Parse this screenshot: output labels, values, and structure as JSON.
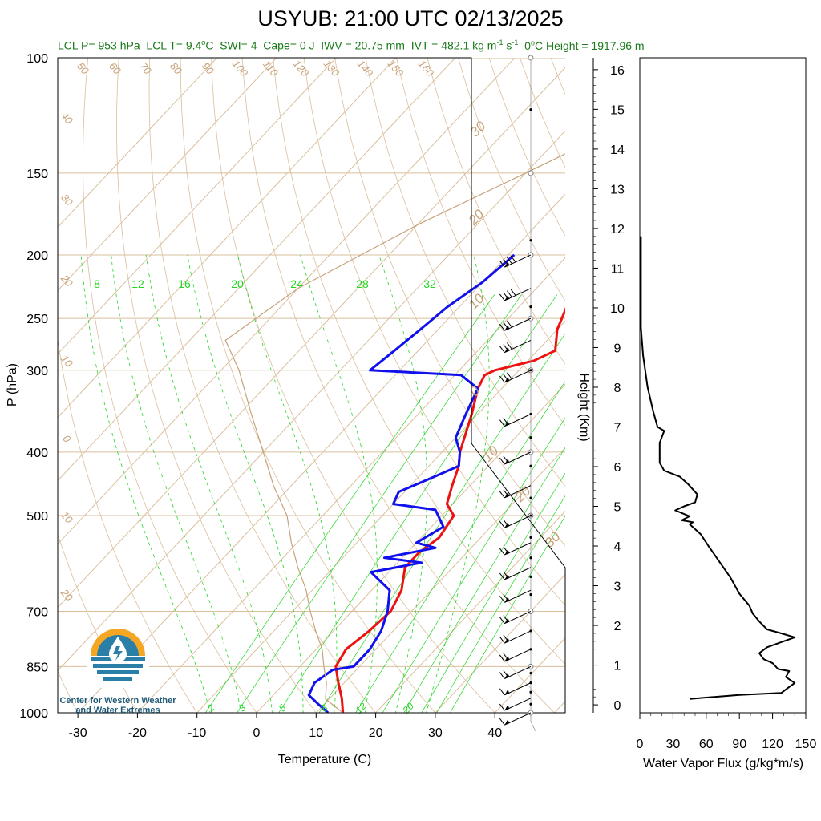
{
  "title": "USYUB: 21:00 UTC 02/13/2025",
  "subtitle": {
    "lcl_p": "LCL P= 953 hPa",
    "lcl_t": "LCL T= 9.4",
    "swi": "SWI= 4",
    "cape": "Cape= 0 J",
    "iwv": "IWV = 20.75 mm",
    "ivt": "IVT = 482.1 kg m",
    "zero_height": "0",
    "zero_height_tail": "C Height = 1917.96 m"
  },
  "logo": {
    "line1": "Center for Western Weather",
    "line2": "and Water Extremes"
  },
  "chart_data": [
    {
      "type": "line",
      "subtype": "skew-t",
      "xlabel": "Temperature (C)",
      "ylabel": "P (hPa)",
      "x_ticks": [
        -30,
        -20,
        -10,
        0,
        10,
        20,
        30,
        40
      ],
      "y_ticks": [
        100,
        150,
        200,
        250,
        300,
        400,
        500,
        700,
        850,
        1000
      ],
      "y_scale": "log",
      "ylim": [
        1000,
        100
      ],
      "xlim": [
        -35,
        49
      ],
      "grid": true,
      "dry_adiabat_labels": [
        "50",
        "60",
        "70",
        "80",
        "90",
        "100",
        "110",
        "120",
        "130",
        "140",
        "150",
        "160",
        "40",
        "30",
        "20",
        "10",
        "0",
        "10",
        "20"
      ],
      "isotherm_labels": [
        "30",
        "20",
        "10",
        "0",
        "10",
        "20",
        "30"
      ],
      "mixing_ratio_labels_top": [
        "8",
        "12",
        "16",
        "20",
        "24",
        "28",
        "32"
      ],
      "mixing_ratio_labels_bottom": [
        "2",
        "3",
        "5",
        "8",
        "12",
        "20"
      ],
      "series": [
        {
          "key": "temperature",
          "color": "#ee1111",
          "points": [
            [
              14.5,
              1000
            ],
            [
              12,
              950
            ],
            [
              9,
              900
            ],
            [
              6,
              850
            ],
            [
              5,
              800
            ],
            [
              6,
              750
            ],
            [
              6.5,
              700
            ],
            [
              5,
              650
            ],
            [
              2,
              600
            ],
            [
              2,
              570
            ],
            [
              3,
              540
            ],
            [
              2,
              500
            ],
            [
              -1,
              480
            ],
            [
              -3,
              450
            ],
            [
              -5,
              420
            ],
            [
              -7,
              400
            ],
            [
              -11,
              350
            ],
            [
              -14,
              320
            ],
            [
              -15,
              305
            ],
            [
              -14,
              300
            ],
            [
              -9,
              290
            ],
            [
              -7,
              280
            ],
            [
              -10,
              260
            ],
            [
              -12,
              240
            ],
            [
              -14,
              220
            ],
            [
              -16,
              200
            ]
          ]
        },
        {
          "key": "dewpoint",
          "color": "#1111ee",
          "points": [
            [
              12,
              1000
            ],
            [
              9,
              970
            ],
            [
              6,
              940
            ],
            [
              5,
              900
            ],
            [
              6,
              860
            ],
            [
              9,
              850
            ],
            [
              9,
              800
            ],
            [
              8,
              750
            ],
            [
              6,
              700
            ],
            [
              3,
              650
            ],
            [
              -3,
              610
            ],
            [
              4,
              590
            ],
            [
              -3,
              580
            ],
            [
              4,
              560
            ],
            [
              0,
              550
            ],
            [
              2,
              520
            ],
            [
              -2,
              490
            ],
            [
              -10,
              480
            ],
            [
              -11,
              460
            ],
            [
              -8,
              440
            ],
            [
              -5,
              420
            ],
            [
              -7,
              400
            ],
            [
              -10,
              380
            ],
            [
              -12,
              350
            ],
            [
              -14,
              320
            ],
            [
              -19,
              305
            ],
            [
              -35,
              300
            ],
            [
              -34,
              280
            ],
            [
              -33,
              260
            ],
            [
              -32,
              240
            ],
            [
              -30,
              220
            ],
            [
              -29,
              200
            ]
          ]
        },
        {
          "key": "parcel",
          "color": "#c8a27a",
          "points": [
            [
              14.5,
              1000
            ],
            [
              9.4,
              953
            ],
            [
              7,
              900
            ],
            [
              4,
              850
            ],
            [
              1,
              800
            ],
            [
              -3,
              750
            ],
            [
              -7,
              700
            ],
            [
              -11,
              650
            ],
            [
              -16,
              600
            ],
            [
              -21,
              550
            ],
            [
              -26,
              500
            ],
            [
              -33,
              450
            ],
            [
              -40,
              400
            ],
            [
              -48,
              350
            ],
            [
              -57,
              300
            ],
            [
              -64,
              270
            ],
            [
              -60,
              225
            ],
            [
              -50,
              180
            ],
            [
              -40,
              150
            ],
            [
              -28,
              120
            ],
            [
              -20,
              100
            ]
          ]
        }
      ],
      "wind_barbs": [
        {
          "p": 1000,
          "speed": 10
        },
        {
          "p": 950,
          "speed": 15
        },
        {
          "p": 900,
          "speed": 15
        },
        {
          "p": 850,
          "speed": 20
        },
        {
          "p": 800,
          "speed": 20
        },
        {
          "p": 750,
          "speed": 20
        },
        {
          "p": 700,
          "speed": 20
        },
        {
          "p": 650,
          "speed": 20
        },
        {
          "p": 600,
          "speed": 25
        },
        {
          "p": 550,
          "speed": 25
        },
        {
          "p": 500,
          "speed": 25
        },
        {
          "p": 450,
          "speed": 25
        },
        {
          "p": 400,
          "speed": 25
        },
        {
          "p": 350,
          "speed": 25
        },
        {
          "p": 300,
          "speed": 30
        },
        {
          "p": 270,
          "speed": 30
        },
        {
          "p": 250,
          "speed": 30
        },
        {
          "p": 225,
          "speed": 40
        },
        {
          "p": 200,
          "speed": 40
        }
      ]
    },
    {
      "type": "line",
      "subtype": "profile",
      "xlabel": "Water Vapor Flux (g/kg*m/s)",
      "ylabel": "Height (Km)",
      "x_ticks": [
        0,
        30,
        60,
        90,
        120,
        150
      ],
      "y_ticks": [
        0,
        1,
        2,
        3,
        4,
        5,
        6,
        7,
        8,
        9,
        10,
        11,
        12,
        13,
        14,
        15,
        16
      ],
      "xlim": [
        0,
        150
      ],
      "ylim": [
        -0.2,
        16.3
      ],
      "series": [
        {
          "key": "water_vapor_flux",
          "color": "#000000",
          "points": [
            [
              45,
              0.15
            ],
            [
              90,
              0.25
            ],
            [
              128,
              0.3
            ],
            [
              135,
              0.45
            ],
            [
              140,
              0.55
            ],
            [
              132,
              0.7
            ],
            [
              135,
              0.85
            ],
            [
              125,
              0.9
            ],
            [
              120,
              1.05
            ],
            [
              112,
              1.15
            ],
            [
              108,
              1.3
            ],
            [
              115,
              1.45
            ],
            [
              125,
              1.55
            ],
            [
              140,
              1.7
            ],
            [
              128,
              1.8
            ],
            [
              115,
              1.9
            ],
            [
              108,
              2.1
            ],
            [
              102,
              2.3
            ],
            [
              99,
              2.5
            ],
            [
              90,
              2.8
            ],
            [
              82,
              3.2
            ],
            [
              72,
              3.6
            ],
            [
              62,
              4.0
            ],
            [
              55,
              4.3
            ],
            [
              45,
              4.55
            ],
            [
              48,
              4.6
            ],
            [
              38,
              4.65
            ],
            [
              45,
              4.75
            ],
            [
              32,
              4.9
            ],
            [
              40,
              5.0
            ],
            [
              50,
              5.1
            ],
            [
              52,
              5.3
            ],
            [
              44,
              5.55
            ],
            [
              36,
              5.75
            ],
            [
              22,
              5.9
            ],
            [
              18,
              6.1
            ],
            [
              18,
              6.6
            ],
            [
              22,
              6.9
            ],
            [
              16,
              7.0
            ],
            [
              12,
              7.4
            ],
            [
              7,
              8.0
            ],
            [
              3,
              8.8
            ],
            [
              1,
              9.5
            ],
            [
              1,
              10.5
            ],
            [
              1,
              11.5
            ],
            [
              1,
              11.8
            ]
          ]
        }
      ]
    }
  ]
}
